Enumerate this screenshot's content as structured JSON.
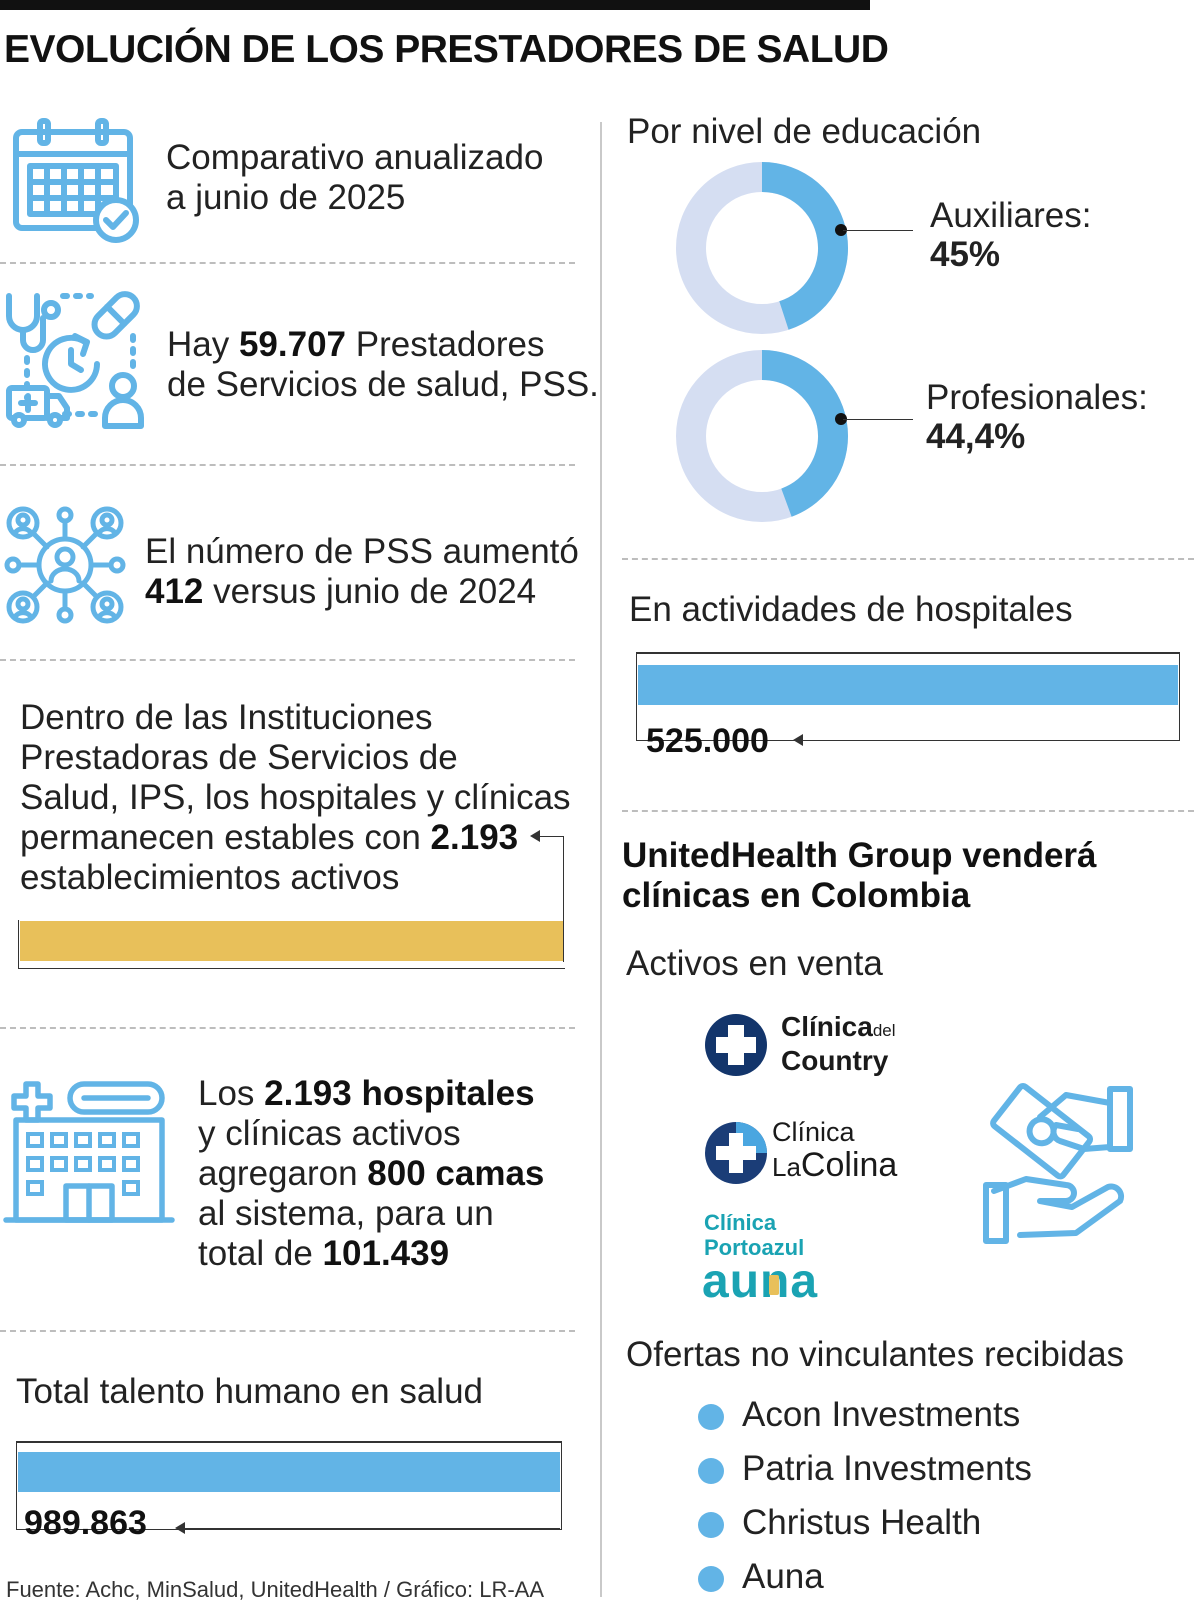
{
  "title": "EVOLUCIÓN DE LOS PRESTADORES DE SALUD",
  "left": {
    "item1": {
      "line1": "Comparativo anualizado",
      "line2": "a junio de 2025",
      "icon": "calendar-check-icon"
    },
    "item2": {
      "pre": "Hay ",
      "bold": "59.707",
      "post": " Prestadores",
      "line2": "de Servicios de salud, PSS.",
      "icon": "health-services-icon"
    },
    "item3": {
      "line1": "El número de PSS aumentó",
      "bold": "412",
      "post": " versus junio de 2024",
      "icon": "people-network-icon"
    },
    "item4": {
      "line1": "Dentro de las Instituciones",
      "line2": "Prestadoras de Servicios de",
      "line3": "Salud, IPS, los hospitales y clínicas",
      "line4_pre": "permanecen estables con ",
      "line4_bold": "2.193",
      "line5": "establecimientos activos",
      "bar_color": "#e8c05a"
    },
    "item5": {
      "l1_pre": "Los ",
      "l1_bold": "2.193 hospitales",
      "l2": "y clínicas activos",
      "l3_pre": "agregaron ",
      "l3_bold": "800 camas",
      "l4": "al sistema, para un",
      "l5_pre": "total de ",
      "l5_bold": "101.439",
      "icon": "hospital-icon"
    },
    "talent": {
      "label": "Total talento humano en salud",
      "value": "989.863",
      "bar_color": "#62b4e6"
    },
    "source": "Fuente: Achc, MinSalud, UnitedHealth / Gráfico: LR-AA"
  },
  "right": {
    "education": {
      "title": "Por nivel de educación",
      "items": [
        {
          "label": "Auxiliares:",
          "value_text": "45%",
          "value": 45
        },
        {
          "label": "Profesionales:",
          "value_text": "44,4%",
          "value": 44.4
        }
      ],
      "ring_color": "#62b4e6",
      "ring_bg": "#d5def2"
    },
    "hospitals": {
      "label": "En actividades de hospitales",
      "value": "525.000",
      "bar_color": "#62b4e6"
    },
    "united": {
      "headline1": "UnitedHealth Group venderá",
      "headline2": "clínicas en Colombia",
      "assets_title": "Activos en venta",
      "logos": {
        "country_main": "Clínica",
        "country_small": "del",
        "country_line2": "Country",
        "colina_line1": "Clínica",
        "colina_la": "La",
        "colina_main": "Colina",
        "portoazul_line1": "Clínica",
        "portoazul_line2": "Portoazul",
        "auna": "auna"
      },
      "hand_icon": "money-exchange-hands-icon",
      "offers_title": "Ofertas no vinculantes recibidas",
      "offers": [
        "Acon Investments",
        "Patria Investments",
        "Christus Health",
        "Auna"
      ]
    }
  },
  "colors": {
    "accent_blue": "#62b4e6",
    "gold": "#e8c05a",
    "navy": "#13356b",
    "teal": "#1aa3b3"
  }
}
